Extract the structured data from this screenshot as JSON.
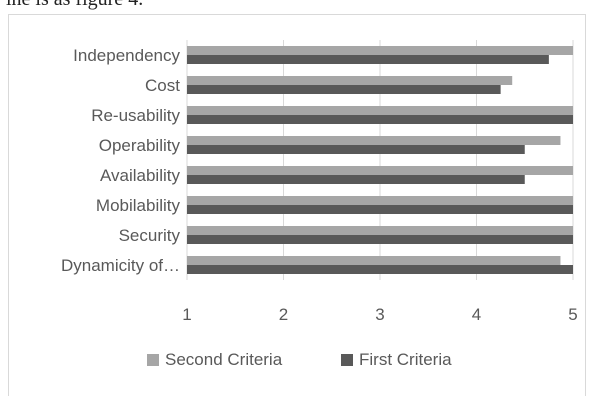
{
  "caption_fragment": "ine is as figure 4.",
  "chart_data": {
    "type": "bar",
    "orientation": "horizontal",
    "title": "",
    "xlabel": "",
    "ylabel": "",
    "categories": [
      "Independency",
      "Cost",
      "Re-usability",
      "Operability",
      "Availability",
      "Mobilability",
      "Security",
      "Dynamicity of…"
    ],
    "series": [
      {
        "name": "Second Criteria",
        "color": "#a6a6a6",
        "values": [
          5,
          4.37,
          5,
          4.87,
          5,
          5,
          5,
          4.87
        ]
      },
      {
        "name": "First Criteria",
        "color": "#595959",
        "values": [
          4.75,
          4.25,
          5,
          4.5,
          4.5,
          5,
          5,
          5
        ]
      }
    ],
    "xlim": [
      1,
      5
    ],
    "x_ticks": [
      "1",
      "2",
      "3",
      "4",
      "5"
    ],
    "grid": "vertical gridlines",
    "legend_position": "bottom"
  }
}
